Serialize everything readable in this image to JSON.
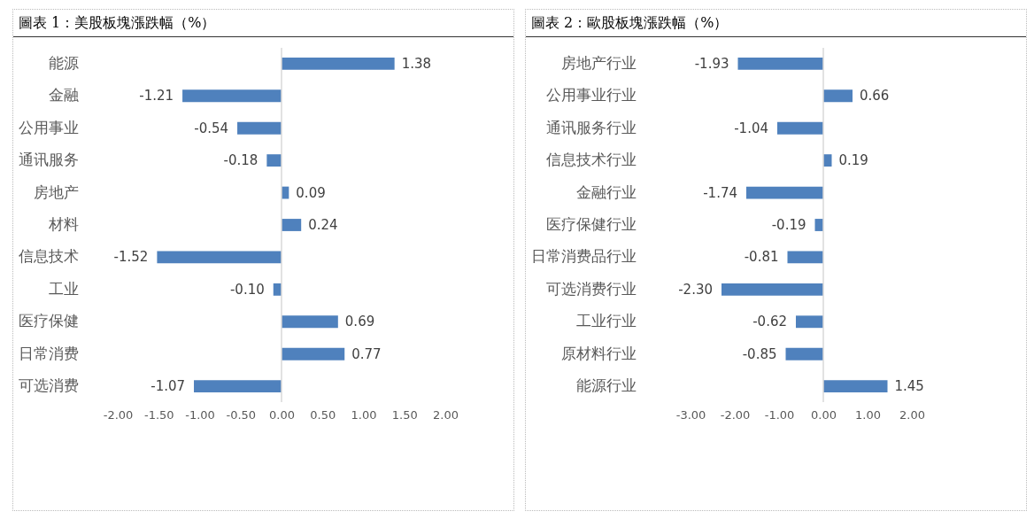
{
  "chart_data": [
    {
      "type": "bar",
      "title": "圖表 1：美股板塊漲跌幅（%）",
      "orientation": "horizontal",
      "categories": [
        "能源",
        "金融",
        "公用事业",
        "通讯服务",
        "房地产",
        "材料",
        "信息技术",
        "工业",
        "医疗保健",
        "日常消费",
        "可选消费"
      ],
      "series": [
        {
          "color": "#4f81bd",
          "values": [
            1.38,
            -1.21,
            -0.54,
            -0.18,
            0.09,
            0.24,
            -1.52,
            -0.1,
            0.69,
            0.77,
            -1.07
          ]
        }
      ],
      "value_labels": [
        "1.38",
        "-1.21",
        "-0.54",
        "-0.18",
        "0.09",
        "0.24",
        "-1.52",
        "-0.10",
        "0.69",
        "0.77",
        "-1.07"
      ],
      "xlim": [
        -2,
        2
      ],
      "xticks": [
        {
          "value": -2,
          "label": "-2.00"
        },
        {
          "value": -1.5,
          "label": "-1.50"
        },
        {
          "value": -1,
          "label": "-1.00"
        },
        {
          "value": -0.5,
          "label": "-0.50"
        },
        {
          "value": 0,
          "label": "0.00"
        },
        {
          "value": 0.5,
          "label": "0.50"
        },
        {
          "value": 1,
          "label": "1.00"
        },
        {
          "value": 1.5,
          "label": "1.50"
        },
        {
          "value": 2,
          "label": "2.00"
        }
      ],
      "grid": false,
      "legend": false,
      "ref_lines": [
        {
          "axis": "x",
          "value": 0,
          "color": "#d9d9d9"
        }
      ]
    },
    {
      "type": "bar",
      "title": "圖表 2：歐股板塊漲跌幅（%）",
      "orientation": "horizontal",
      "categories": [
        "房地产行业",
        "公用事业行业",
        "通讯服务行业",
        "信息技术行业",
        "金融行业",
        "医疗保健行业",
        "日常消费品行业",
        "可选消费行业",
        "工业行业",
        "原材料行业",
        "能源行业"
      ],
      "series": [
        {
          "color": "#4f81bd",
          "values": [
            -1.93,
            0.66,
            -1.04,
            0.19,
            -1.74,
            -0.19,
            -0.81,
            -2.3,
            -0.62,
            -0.85,
            1.45
          ]
        }
      ],
      "value_labels": [
        "-1.93",
        "0.66",
        "-1.04",
        "0.19",
        "-1.74",
        "-0.19",
        "-0.81",
        "-2.30",
        "-0.62",
        "-0.85",
        "1.45"
      ],
      "xlim": [
        -3,
        2
      ],
      "xticks": [
        {
          "value": -3,
          "label": "-3.00"
        },
        {
          "value": -2,
          "label": "-2.00"
        },
        {
          "value": -1,
          "label": "-1.00"
        },
        {
          "value": 0,
          "label": "0.00"
        },
        {
          "value": 1,
          "label": "1.00"
        },
        {
          "value": 2,
          "label": "2.00"
        }
      ],
      "grid": false,
      "legend": false,
      "ref_lines": [
        {
          "axis": "x",
          "value": 0,
          "color": "#d9d9d9"
        }
      ]
    }
  ]
}
